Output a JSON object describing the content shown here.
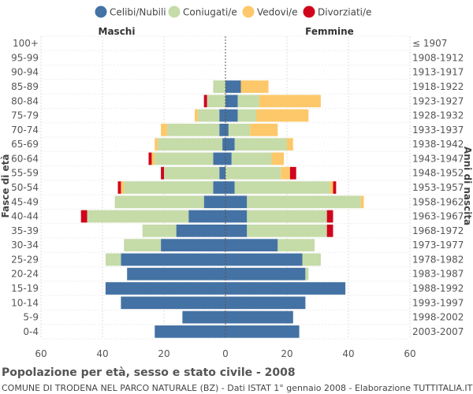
{
  "chart_data": {
    "type": "bar",
    "orientation": "horizontal-population-pyramid",
    "title": "Popolazione per età, sesso e stato civile - 2008",
    "subtitle": "COMUNE DI TRODENA NEL PARCO NATURALE (BZ) - Dati ISTAT 1° gennaio 2008 - Elaborazione TUTTITALIA.IT",
    "left_label": "Maschi",
    "right_label": "Femmine",
    "ylabel_left": "Fasce di età",
    "ylabel_right": "Anni di nascita",
    "xlim": [
      -60,
      60
    ],
    "x_ticks": [
      -60,
      -40,
      -20,
      0,
      20,
      40,
      60
    ],
    "x_tick_labels": [
      "60",
      "40",
      "20",
      "0",
      "20",
      "40",
      "60"
    ],
    "grid": true,
    "legend_position": "top",
    "legend": [
      {
        "name": "Celibi/Nubili",
        "color": "#4472a4"
      },
      {
        "name": "Coniugati/e",
        "color": "#c5dba8"
      },
      {
        "name": "Vedovi/e",
        "color": "#fdc86a"
      },
      {
        "name": "Divorziati/e",
        "color": "#d0041c"
      }
    ],
    "categories": [
      "100+",
      "95-99",
      "90-94",
      "85-89",
      "80-84",
      "75-79",
      "70-74",
      "65-69",
      "60-64",
      "55-59",
      "50-54",
      "45-49",
      "40-44",
      "35-39",
      "30-34",
      "25-29",
      "20-24",
      "15-19",
      "10-14",
      "5-9",
      "0-4"
    ],
    "birth_years": [
      "≤ 1907",
      "1908-1912",
      "1913-1917",
      "1918-1922",
      "1923-1927",
      "1928-1932",
      "1933-1937",
      "1938-1942",
      "1943-1947",
      "1948-1952",
      "1953-1957",
      "1958-1962",
      "1963-1967",
      "1968-1972",
      "1973-1977",
      "1978-1982",
      "1983-1987",
      "1988-1992",
      "1993-1997",
      "1998-2002",
      "2003-2007"
    ],
    "male": {
      "celibi": [
        0,
        0,
        0,
        0,
        0,
        2,
        2,
        1,
        4,
        2,
        4,
        7,
        12,
        16,
        21,
        34,
        32,
        39,
        34,
        14,
        23
      ],
      "coniugati": [
        0,
        0,
        0,
        4,
        6,
        7,
        17,
        21,
        19,
        18,
        29,
        29,
        33,
        11,
        12,
        5,
        0,
        0,
        0,
        0,
        0
      ],
      "vedovi": [
        0,
        0,
        0,
        0,
        0,
        1,
        2,
        1,
        1,
        0,
        1,
        0,
        0,
        0,
        0,
        0,
        0,
        0,
        0,
        0,
        0
      ],
      "divorziati": [
        0,
        0,
        0,
        0,
        1,
        0,
        0,
        0,
        1,
        1,
        1,
        0,
        2,
        0,
        0,
        0,
        0,
        0,
        0,
        0,
        0
      ]
    },
    "female": {
      "nubili": [
        0,
        0,
        0,
        5,
        4,
        4,
        1,
        3,
        2,
        0,
        3,
        7,
        7,
        7,
        17,
        25,
        26,
        39,
        26,
        22,
        24
      ],
      "coniugate": [
        0,
        0,
        0,
        0,
        7,
        6,
        7,
        17,
        13,
        18,
        31,
        37,
        26,
        26,
        12,
        6,
        1,
        0,
        0,
        0,
        0
      ],
      "vedove": [
        0,
        0,
        0,
        9,
        20,
        17,
        9,
        2,
        4,
        3,
        1,
        1,
        0,
        0,
        0,
        0,
        0,
        0,
        0,
        0,
        0
      ],
      "divorziate": [
        0,
        0,
        0,
        0,
        0,
        0,
        0,
        0,
        0,
        2,
        1,
        0,
        2,
        2,
        0,
        0,
        0,
        0,
        0,
        0,
        0
      ]
    }
  }
}
